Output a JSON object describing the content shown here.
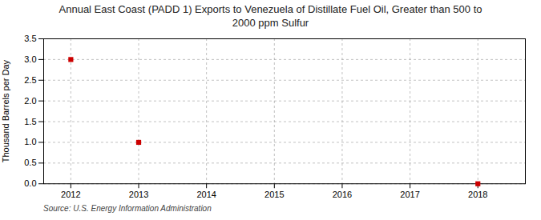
{
  "chart_data": {
    "type": "scatter",
    "title": "Annual East Coast (PADD 1) Exports to Venezuela of Distillate Fuel Oil, Greater than 500 to\n2000 ppm Sulfur",
    "ylabel": "Thousand Barrels per Day",
    "source": "Source: U.S. Energy Information Administration",
    "x": [
      2012,
      2013,
      2018
    ],
    "values": [
      3.0,
      1.0,
      0.0
    ],
    "color": "#cc0000",
    "marker": "square",
    "xlim": [
      2011.6,
      2018.7
    ],
    "ylim": [
      0.0,
      3.5
    ],
    "xticks": [
      2012,
      2013,
      2014,
      2015,
      2016,
      2017,
      2018
    ],
    "yticks": [
      {
        "value": 0.0,
        "label": "0.0"
      },
      0.5,
      {
        "value": 1.0,
        "label": "1.0"
      },
      1.5,
      {
        "value": 2.0,
        "label": "2.0"
      },
      2.5,
      {
        "value": 3.0,
        "label": "3.0"
      },
      3.5
    ],
    "grid": true
  }
}
